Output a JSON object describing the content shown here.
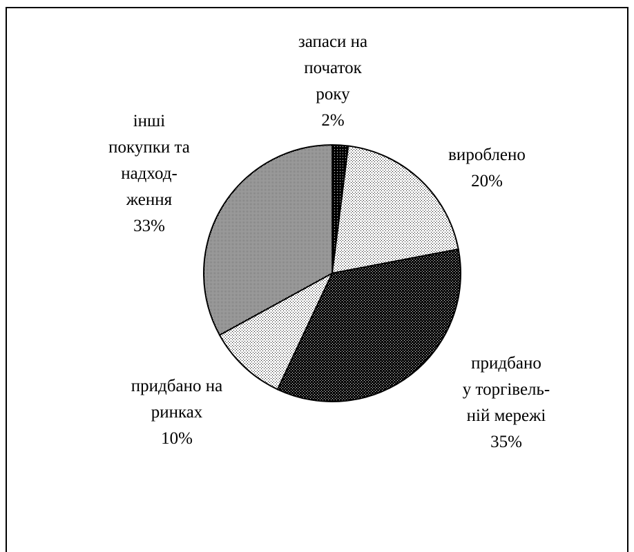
{
  "chart_data": {
    "type": "pie",
    "slices": [
      {
        "label_lines": [
          "запаси на",
          "початок",
          "року"
        ],
        "value": 2,
        "value_label": "2%",
        "fill": "black-dotted"
      },
      {
        "label_lines": [
          "вироблено"
        ],
        "value": 20,
        "value_label": "20%",
        "fill": "light-dotted"
      },
      {
        "label_lines": [
          "придбано",
          "у торгівель-",
          "ній мережі"
        ],
        "value": 35,
        "value_label": "35%",
        "fill": "dark-dotted"
      },
      {
        "label_lines": [
          "придбано на",
          "ринках"
        ],
        "value": 10,
        "value_label": "10%",
        "fill": "light-dotted"
      },
      {
        "label_lines": [
          "інші",
          "покупки та",
          "надход-",
          "ження"
        ],
        "value": 33,
        "value_label": "33%",
        "fill": "grey-dotted"
      }
    ],
    "start": "12 o'clock",
    "direction": "clockwise",
    "legend": "none"
  }
}
